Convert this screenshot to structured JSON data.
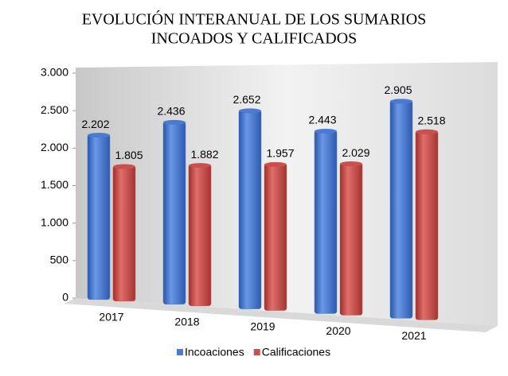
{
  "chart_data": {
    "type": "bar",
    "title": [
      "EVOLUCIÓN INTERANUAL DE LOS SUMARIOS",
      "INCOADOS Y CALIFICADOS"
    ],
    "categories": [
      "2017",
      "2018",
      "2019",
      "2020",
      "2021"
    ],
    "series": [
      {
        "name": "Incoaciones",
        "color": "#4a7bd0",
        "values": [
          2202,
          2436,
          2652,
          2443,
          2905
        ],
        "value_labels": [
          "2.202",
          "2.436",
          "2.652",
          "2.443",
          "2.905"
        ]
      },
      {
        "name": "Calificaciones",
        "color": "#c9504d",
        "values": [
          1805,
          1882,
          1957,
          2029,
          2518
        ],
        "value_labels": [
          "1.805",
          "1.882",
          "1.957",
          "2.029",
          "2.518"
        ]
      }
    ],
    "ylim": [
      0,
      3000
    ],
    "yticks": [
      0,
      500,
      {
        "value": 1000,
        "label": "1.000"
      },
      {
        "value": 1500,
        "label": "1.500"
      },
      {
        "value": 2000,
        "label": "2.000"
      },
      {
        "value": 2500,
        "label": "2.500"
      },
      {
        "value": 3000,
        "label": "3.000"
      }
    ],
    "grid": false,
    "legend": "bottom"
  }
}
